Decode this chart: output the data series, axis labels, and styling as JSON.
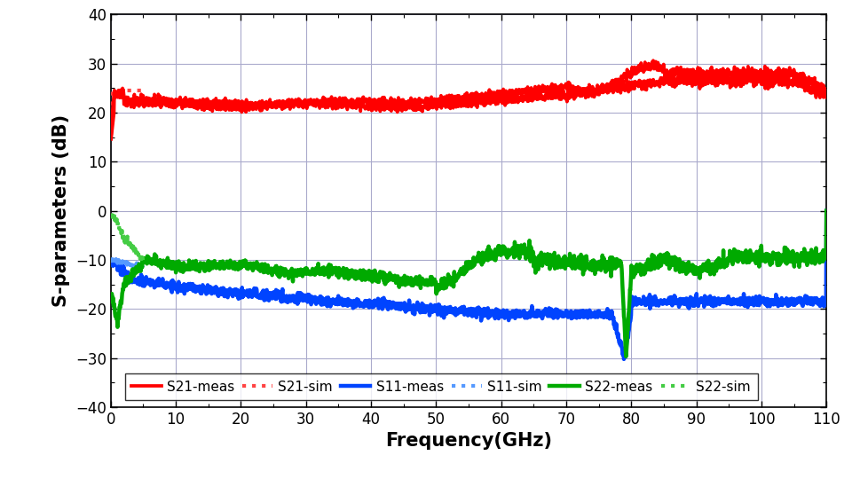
{
  "xlabel": "Frequency(GHz)",
  "ylabel": "S-parameters (dB)",
  "xlim": [
    0,
    110
  ],
  "ylim": [
    -40,
    40
  ],
  "xticks": [
    0,
    10,
    20,
    30,
    40,
    50,
    60,
    70,
    80,
    90,
    100,
    110
  ],
  "yticks": [
    -40,
    -30,
    -20,
    -10,
    0,
    10,
    20,
    30,
    40
  ],
  "colors": {
    "S21_meas": "#ff0000",
    "S21_sim": "#ff4444",
    "S11_meas": "#0044ff",
    "S11_sim": "#5599ff",
    "S22_meas": "#00aa00",
    "S22_sim": "#44cc44"
  },
  "lw_meas": 2.2,
  "lw_sim": 2.0,
  "background_color": "#ffffff",
  "grid_color": "#aaaacc",
  "legend_fontsize": 11,
  "axis_fontsize": 15,
  "tick_fontsize": 12
}
